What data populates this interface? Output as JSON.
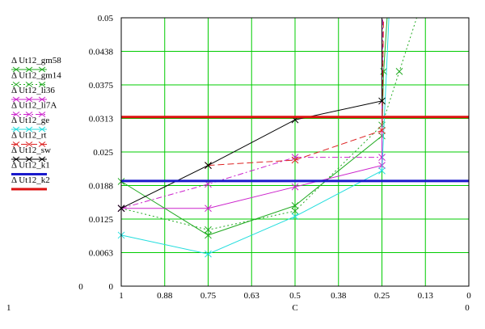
{
  "chart_data": {
    "type": "line",
    "title": "",
    "xlabel": "C",
    "ylabel": "",
    "xlim": [
      1,
      0
    ],
    "ylim": [
      0,
      0.05
    ],
    "x_reversed": true,
    "grid": true,
    "grid_color": "#00cc00",
    "legend_placement": "left",
    "x_tick_labels": [
      "1",
      "0.88",
      "0.75",
      "0.63",
      "0.5",
      "0.38",
      "0.25",
      "0.13",
      "0"
    ],
    "x_tick_values": [
      1,
      0.875,
      0.75,
      0.625,
      0.5,
      0.375,
      0.25,
      0.125,
      0
    ],
    "y_tick_labels": [
      "0",
      "0.0063",
      "0.0125",
      "0.0188",
      "0.025",
      "0.0313",
      "0.0375",
      "0.0438",
      "0.05"
    ],
    "y_tick_values": [
      0,
      0.00625,
      0.0125,
      0.01875,
      0.025,
      0.03125,
      0.0375,
      0.04375,
      0.05
    ],
    "y_min_label": "0",
    "y_max_label": "0.05",
    "x_min_label": "1",
    "x_max_label": "0",
    "series": [
      {
        "name": "Δ Ut12_gm58",
        "color": "#22aa22",
        "dash": "",
        "marker": "x",
        "x": [
          1,
          0.75,
          0.5,
          0.25,
          0.245,
          0.235
        ],
        "y": [
          0.0195,
          0.0095,
          0.015,
          0.028,
          0.04,
          0.05
        ]
      },
      {
        "name": "Δ Ut12_gm14",
        "color": "#22aa22",
        "dash": "2,3",
        "marker": "x",
        "x": [
          1,
          0.75,
          0.5,
          0.25,
          0.2,
          0.15
        ],
        "y": [
          0.0145,
          0.0105,
          0.014,
          0.03,
          0.04,
          0.05
        ]
      },
      {
        "name": "Δ Ut12_li36",
        "color": "#cc22cc",
        "dash": "",
        "marker": "x",
        "x": [
          1,
          0.75,
          0.5,
          0.25,
          0.25
        ],
        "y": [
          0.0145,
          0.0145,
          0.0185,
          0.0225,
          0.05
        ]
      },
      {
        "name": "Δ Ut12_li7A",
        "color": "#cc22cc",
        "dash": "7,3,2,3",
        "marker": "x",
        "x": [
          1,
          0.75,
          0.5,
          0.25,
          0.248
        ],
        "y": [
          0.0145,
          0.019,
          0.024,
          0.024,
          0.05
        ]
      },
      {
        "name": "Δ Ut12_ge",
        "color": "#22dddd",
        "dash": "",
        "marker": "x",
        "x": [
          1,
          0.75,
          0.5,
          0.25,
          0.23
        ],
        "y": [
          0.0095,
          0.006,
          0.013,
          0.0215,
          0.05
        ]
      },
      {
        "name": "Δ Ut12_rt",
        "color": "#dd2222",
        "dash": "8,4",
        "marker": "x",
        "x": [
          0.75,
          0.5,
          0.25,
          0.245
        ],
        "y": [
          0.0225,
          0.0235,
          0.029,
          0.05
        ]
      },
      {
        "name": "Δ Ut12_sw",
        "color": "#000000",
        "dash": "",
        "marker": "x",
        "x": [
          1,
          0.75,
          0.5,
          0.25,
          0.25
        ],
        "y": [
          0.0145,
          0.0225,
          0.031,
          0.0345,
          0.05
        ]
      },
      {
        "name": "Δ Ut12_k1",
        "color": "#1a1acc",
        "dash": "",
        "marker": "none",
        "x": [
          1,
          0
        ],
        "y": [
          0.0196,
          0.0196
        ]
      },
      {
        "name": "Δ Ut12_k2",
        "color": "#dd1111",
        "dash": "",
        "marker": "none",
        "x": [
          1,
          0
        ],
        "y": [
          0.0315,
          0.0315
        ]
      }
    ]
  }
}
